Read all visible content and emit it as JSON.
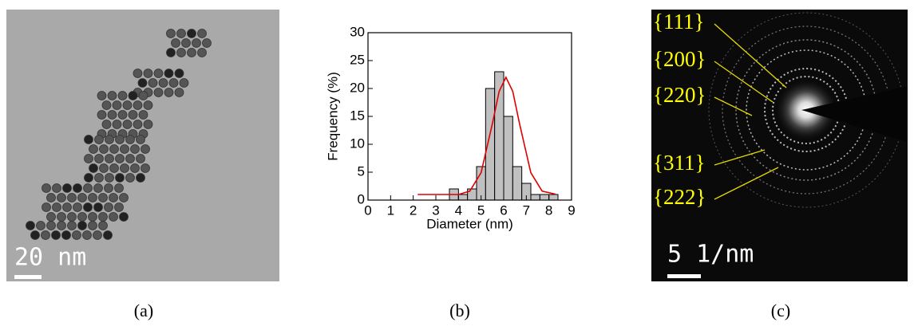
{
  "panels": {
    "a": {
      "caption": "(a)",
      "scale_label": "20 nm"
    },
    "b": {
      "caption": "(b)"
    },
    "c": {
      "caption": "(c)",
      "scale_label": "5 1/nm",
      "ring_labels": [
        "{111}",
        "{200}",
        "{220}",
        "{311}",
        "{222}"
      ]
    }
  },
  "chart_data": {
    "type": "histogram",
    "x_label": "Diameter (nm)",
    "y_label": "Frequency (%)",
    "bins": [
      3.6,
      4.0,
      4.4,
      4.8,
      5.2,
      5.6,
      6.0,
      6.4,
      6.8,
      7.2,
      7.6,
      8.0,
      8.4
    ],
    "counts": [
      2,
      1,
      2,
      6,
      20,
      23,
      15,
      6,
      3,
      1,
      1,
      1
    ],
    "color": "#c0c0c0",
    "fit": {
      "color": "#e00000",
      "x": [
        2.2,
        4.0,
        4.5,
        5.0,
        5.5,
        5.8,
        6.1,
        6.4,
        6.7,
        7.2,
        7.7,
        8.3
      ],
      "values": [
        1,
        1,
        1.6,
        4.9,
        13.7,
        19.5,
        22,
        19.5,
        13.7,
        4.9,
        1.6,
        1.05
      ]
    },
    "xlim": [
      0,
      9
    ],
    "xticks": [
      0,
      1,
      2,
      3,
      4,
      5,
      6,
      7,
      8,
      9
    ],
    "ylim": [
      0,
      30
    ],
    "yticks": [
      0,
      5,
      10,
      15,
      20,
      25,
      30
    ]
  }
}
